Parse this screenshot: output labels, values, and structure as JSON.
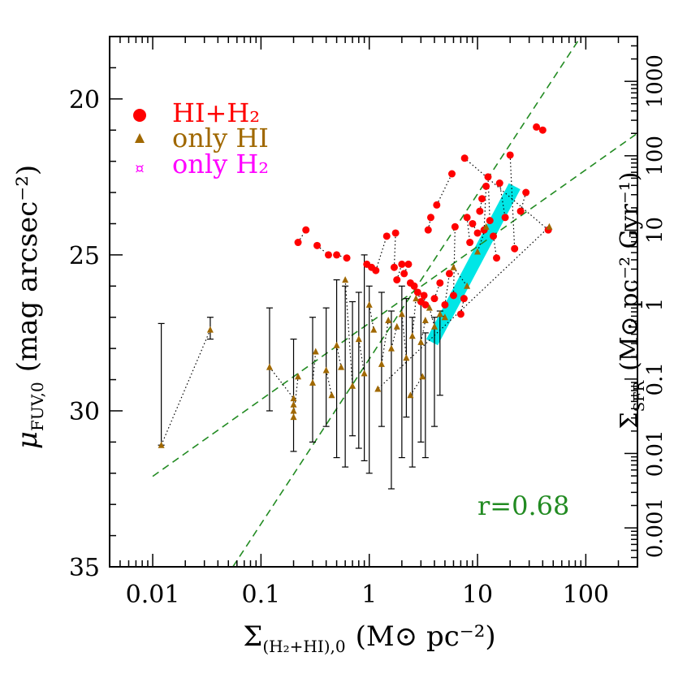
{
  "chart_data": {
    "type": "scatter",
    "title": "",
    "xlabel": {
      "main": "Σ",
      "sub": "(H₂+HI),0",
      "unit": "(M⊙ pc⁻²)"
    },
    "ylabel": {
      "main": "μ",
      "sub": "FUV,0",
      "unit": "(mag arcsec⁻²)"
    },
    "y2label": {
      "main": "Σ",
      "sub": "SFR",
      "unit": "(M⊙ pc⁻² Gyr⁻¹)"
    },
    "xscale": "log",
    "xlim": [
      0.004,
      300
    ],
    "ylim": [
      35,
      18
    ],
    "y2lim_approx": [
      0.0003,
      4000
    ],
    "xticks": [
      "0.01",
      "0.1",
      "1",
      "10",
      "100"
    ],
    "yticks": [
      "20",
      "25",
      "30",
      "35"
    ],
    "y2ticks": [
      "0.001",
      "0.01",
      "0.1",
      "1",
      "10",
      "100",
      "1000"
    ],
    "legend": {
      "placement": "top-left",
      "entries": [
        {
          "label": "HI+H₂",
          "marker": "circle",
          "color": "#ff0000"
        },
        {
          "label": "only HI",
          "marker": "triangle",
          "color": "#a06800"
        },
        {
          "label": "only H₂",
          "marker": "star",
          "color": "#ff00ff"
        }
      ]
    },
    "annotation": {
      "text": "r=0.68",
      "color": "#228b22",
      "position": "bottom-right"
    },
    "fit_lines": [
      {
        "x": [
          0.01,
          300
        ],
        "y": [
          32.1,
          21.1
        ],
        "color": "#228b22",
        "style": "dashed"
      },
      {
        "x": [
          0.055,
          90
        ],
        "y": [
          35.0,
          18.0
        ],
        "color": "#228b22",
        "style": "dashed"
      }
    ],
    "cyan_band": {
      "x_start": 3.8,
      "x_end": 22,
      "y_start": 27.8,
      "y_end": 22.8,
      "color": "#00e6e6"
    },
    "series": [
      {
        "name": "HI+H₂",
        "marker": "circle",
        "color": "#ff0000",
        "points": [
          [
            0.22,
            24.6
          ],
          [
            0.26,
            24.2
          ],
          [
            0.33,
            24.7
          ],
          [
            0.42,
            25.0
          ],
          [
            0.5,
            25.0
          ],
          [
            0.62,
            25.1
          ],
          [
            0.95,
            25.3
          ],
          [
            1.05,
            25.4
          ],
          [
            1.15,
            25.5
          ],
          [
            1.45,
            24.4
          ],
          [
            1.7,
            25.4
          ],
          [
            1.75,
            24.3
          ],
          [
            1.8,
            25.8
          ],
          [
            2.0,
            25.3
          ],
          [
            2.1,
            25.6
          ],
          [
            2.3,
            25.3
          ],
          [
            2.4,
            25.9
          ],
          [
            2.6,
            26.0
          ],
          [
            2.8,
            26.2
          ],
          [
            3.0,
            26.5
          ],
          [
            3.2,
            26.3
          ],
          [
            3.3,
            26.6
          ],
          [
            3.5,
            24.2
          ],
          [
            3.7,
            23.8
          ],
          [
            4.0,
            26.4
          ],
          [
            4.5,
            25.9
          ],
          [
            5.0,
            26.6
          ],
          [
            5.5,
            25.6
          ],
          [
            6.0,
            26.3
          ],
          [
            6.2,
            24.1
          ],
          [
            7.0,
            26.9
          ],
          [
            7.5,
            26.4
          ],
          [
            8.0,
            23.8
          ],
          [
            8.5,
            24.6
          ],
          [
            9.0,
            24.0
          ],
          [
            10.0,
            24.3
          ],
          [
            10.5,
            23.6
          ],
          [
            11.0,
            23.2
          ],
          [
            11.5,
            24.2
          ],
          [
            12.0,
            22.8
          ],
          [
            12.5,
            22.5
          ],
          [
            13.0,
            23.9
          ],
          [
            14.0,
            24.4
          ],
          [
            15.0,
            25.1
          ],
          [
            16.0,
            22.7
          ],
          [
            18.0,
            23.8
          ],
          [
            20.0,
            21.8
          ],
          [
            22.0,
            24.8
          ],
          [
            25.0,
            23.6
          ],
          [
            28.0,
            23.0
          ],
          [
            35.0,
            20.9
          ],
          [
            40.0,
            21.0
          ],
          [
            45.0,
            24.2
          ],
          [
            7.6,
            21.9
          ],
          [
            4.2,
            23.4
          ],
          [
            5.8,
            22.4
          ]
        ]
      },
      {
        "name": "only HI",
        "marker": "triangle",
        "color": "#a06800",
        "points": [
          [
            0.012,
            31.1
          ],
          [
            0.034,
            27.4
          ],
          [
            0.12,
            28.6
          ],
          [
            0.2,
            29.6
          ],
          [
            0.2,
            29.8
          ],
          [
            0.2,
            30.0
          ],
          [
            0.2,
            30.2
          ],
          [
            0.22,
            28.9
          ],
          [
            0.3,
            29.1
          ],
          [
            0.32,
            28.1
          ],
          [
            0.4,
            28.7
          ],
          [
            0.45,
            29.5
          ],
          [
            0.5,
            27.9
          ],
          [
            0.55,
            28.6
          ],
          [
            0.6,
            25.8
          ],
          [
            0.7,
            29.2
          ],
          [
            0.8,
            27.7
          ],
          [
            0.9,
            28.8
          ],
          [
            1.0,
            26.6
          ],
          [
            1.1,
            27.4
          ],
          [
            1.3,
            28.5
          ],
          [
            1.5,
            27.1
          ],
          [
            1.6,
            28.0
          ],
          [
            1.8,
            27.3
          ],
          [
            2.0,
            26.9
          ],
          [
            2.2,
            28.3
          ],
          [
            2.5,
            27.6
          ],
          [
            2.7,
            26.4
          ],
          [
            3.0,
            27.8
          ],
          [
            3.3,
            27.1
          ],
          [
            3.6,
            26.7
          ],
          [
            4.0,
            27.3
          ],
          [
            4.5,
            26.9
          ],
          [
            5.0,
            27.0
          ],
          [
            6.0,
            25.4
          ],
          [
            8.0,
            26.0
          ],
          [
            10.0,
            24.9
          ],
          [
            12.0,
            24.1
          ],
          [
            46.0,
            24.1
          ],
          [
            1.2,
            29.3
          ],
          [
            2.4,
            29.5
          ],
          [
            3.1,
            28.9
          ]
        ]
      },
      {
        "name": "only H₂",
        "marker": "star",
        "color": "#ff00ff",
        "points": []
      }
    ],
    "error_bars": [
      [
        0.012,
        27.2,
        31.1
      ],
      [
        0.034,
        27.0,
        27.7
      ],
      [
        0.12,
        26.7,
        30.0
      ],
      [
        0.2,
        27.7,
        31.3
      ],
      [
        0.3,
        27.0,
        31.0
      ],
      [
        0.4,
        26.7,
        30.5
      ],
      [
        0.5,
        25.8,
        31.5
      ],
      [
        0.6,
        26.0,
        31.8
      ],
      [
        0.7,
        26.5,
        30.8
      ],
      [
        0.8,
        26.2,
        31.2
      ],
      [
        0.9,
        25.0,
        31.6
      ],
      [
        1.0,
        26.0,
        32.0
      ],
      [
        1.3,
        26.2,
        30.5
      ],
      [
        1.6,
        26.8,
        32.5
      ],
      [
        2.0,
        26.0,
        31.5
      ],
      [
        2.2,
        26.4,
        30.2
      ],
      [
        2.5,
        27.0,
        31.8
      ],
      [
        3.0,
        26.5,
        31.0
      ],
      [
        3.3,
        27.5,
        31.5
      ],
      [
        4.0,
        27.0,
        30.5
      ],
      [
        4.5,
        26.8,
        29.5
      ]
    ]
  }
}
